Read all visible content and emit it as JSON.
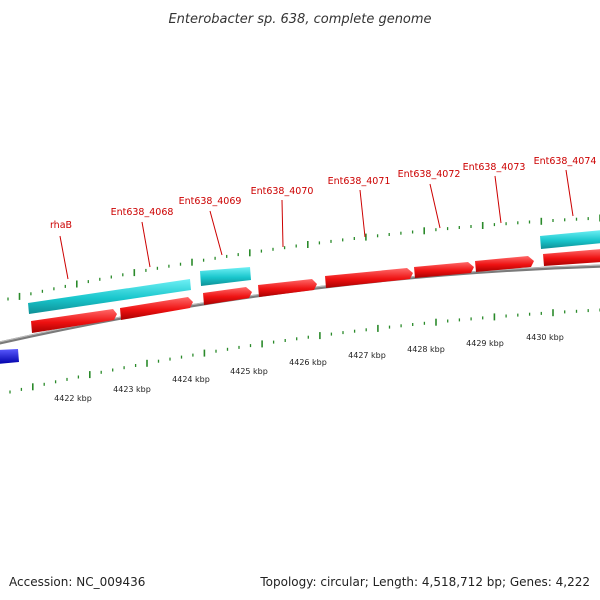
{
  "title": "Enterobacter sp. 638, complete genome",
  "footer": {
    "accession": "Accession: NC_009436",
    "summary": "Topology: circular; Length: 4,518,712 bp; Genes: 4,222"
  },
  "colors": {
    "cds": "#ee1111",
    "gene": "#19c6cc",
    "other_feature": "#1010dd",
    "backbone": "#8a8a8a",
    "ticks": "#2a8a2a",
    "label": "#cc0000"
  },
  "scale": {
    "labels": [
      "4422 kbp",
      "4423 kbp",
      "4424 kbp",
      "4425 kbp",
      "4426 kbp",
      "4427 kbp",
      "4428 kbp",
      "4429 kbp",
      "4430 kbp"
    ]
  },
  "gene_labels": [
    "rhaB",
    "Ent638_4068",
    "Ent638_4069",
    "Ent638_4070",
    "Ent638_4071",
    "Ent638_4072",
    "Ent638_4073",
    "Ent638_4074"
  ]
}
